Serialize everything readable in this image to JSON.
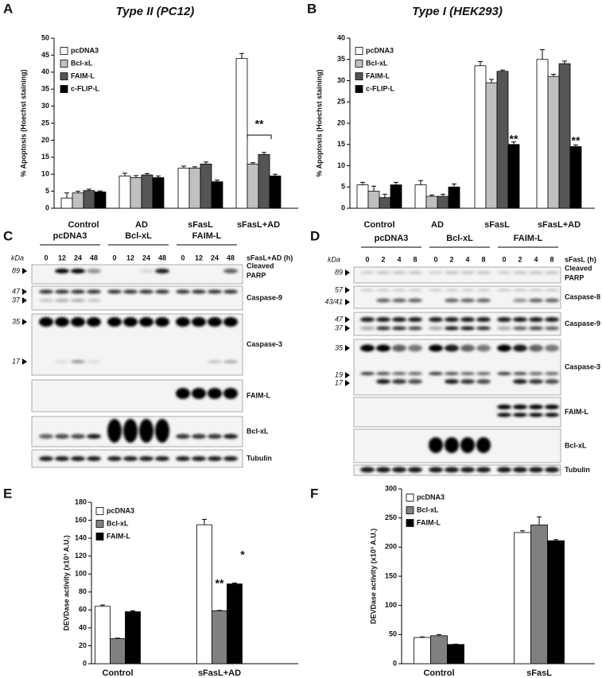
{
  "chart_data": [
    {
      "type": "bar",
      "panel": "A",
      "title": "Type II (PC12)",
      "ylabel": "% Apoptosis (Hoechst staining)",
      "categories": [
        "Control",
        "AD",
        "sFasL",
        "sFasL+AD"
      ],
      "series": [
        {
          "name": "pcDNA3",
          "color": "#ffffff",
          "values": [
            3,
            9.5,
            11.8,
            44
          ],
          "errors": [
            1.5,
            0.8,
            0.6,
            1.5
          ]
        },
        {
          "name": "Bcl-xL",
          "color": "#c0c0c0",
          "values": [
            4.5,
            9,
            11.8,
            13
          ],
          "errors": [
            0.5,
            0.6,
            0.4,
            0.4
          ]
        },
        {
          "name": "FAIM-L",
          "color": "#555555",
          "values": [
            5.2,
            9.8,
            13,
            15.8
          ],
          "errors": [
            0.4,
            0.4,
            0.6,
            0.6
          ]
        },
        {
          "name": "c-FLIP-L",
          "color": "#000000",
          "values": [
            4.8,
            9,
            7.8,
            9.5
          ],
          "errors": [
            0.3,
            0.5,
            0.5,
            0.5
          ]
        }
      ],
      "ylim": [
        0,
        50
      ],
      "yticks": [
        0,
        5,
        10,
        15,
        20,
        25,
        30,
        35,
        40,
        45,
        50
      ],
      "annotations": [
        "**"
      ]
    },
    {
      "type": "bar",
      "panel": "B",
      "title": "Type I (HEK293)",
      "ylabel": "% Apoptosis (Hoechst staining)",
      "categories": [
        "Control",
        "AD",
        "sFasL",
        "sFasL+AD"
      ],
      "series": [
        {
          "name": "pcDNA3",
          "color": "#ffffff",
          "values": [
            5.5,
            5.5,
            33.5,
            35
          ],
          "errors": [
            0.6,
            1,
            1,
            2.3
          ]
        },
        {
          "name": "Bcl-xL",
          "color": "#c0c0c0",
          "values": [
            4,
            2.8,
            29.5,
            31
          ],
          "errors": [
            1.2,
            0.3,
            0.8,
            0.5
          ]
        },
        {
          "name": "FAIM-L",
          "color": "#555555",
          "values": [
            2.5,
            2.8,
            32.2,
            34
          ],
          "errors": [
            0.8,
            0.5,
            0.3,
            0.6
          ]
        },
        {
          "name": "c-FLIP-L",
          "color": "#000000",
          "values": [
            5.5,
            5,
            15,
            14.5
          ],
          "errors": [
            0.6,
            0.7,
            0.6,
            0.4
          ]
        }
      ],
      "ylim": [
        0,
        40
      ],
      "yticks": [
        0,
        5,
        10,
        15,
        20,
        25,
        30,
        35,
        40
      ],
      "annotations": [
        "**",
        "**"
      ]
    },
    {
      "type": "bar",
      "panel": "E",
      "ylabel": "DEVDase activity (x10³ A.U.)",
      "categories": [
        "Control",
        "sFasL+AD"
      ],
      "series": [
        {
          "name": "pcDNA3",
          "color": "#ffffff",
          "values": [
            64,
            155
          ],
          "errors": [
            1.5,
            6
          ]
        },
        {
          "name": "Bcl-xL",
          "color": "#808080",
          "values": [
            28,
            59
          ],
          "errors": [
            0.5,
            0.5
          ]
        },
        {
          "name": "FAIM-L",
          "color": "#000000",
          "values": [
            58,
            89
          ],
          "errors": [
            1,
            1
          ]
        }
      ],
      "ylim": [
        0,
        180
      ],
      "yticks": [
        0,
        20,
        40,
        60,
        80,
        100,
        120,
        140,
        160,
        180
      ],
      "annotations": [
        "**",
        "*"
      ]
    },
    {
      "type": "bar",
      "panel": "F",
      "ylabel": "DEVDase activity (x10³ A.U.)",
      "categories": [
        "Control",
        "sFasL"
      ],
      "series": [
        {
          "name": "pcDNA3",
          "color": "#ffffff",
          "values": [
            45,
            225
          ],
          "errors": [
            1,
            3
          ]
        },
        {
          "name": "Bcl-xL",
          "color": "#808080",
          "values": [
            48,
            238
          ],
          "errors": [
            2,
            14
          ]
        },
        {
          "name": "FAIM-L",
          "color": "#000000",
          "values": [
            33,
            211
          ],
          "errors": [
            0.5,
            2
          ]
        }
      ],
      "ylim": [
        0,
        300
      ],
      "yticks": [
        0,
        50,
        100,
        150,
        200,
        250,
        300
      ],
      "annotations": []
    }
  ],
  "blots": [
    {
      "panel": "C",
      "kda_label": "kDa",
      "groups": [
        "pcDNA3",
        "Bcl-xL",
        "FAIM-L"
      ],
      "times": [
        0,
        12,
        24,
        48
      ],
      "time_label": "sFasL+AD (h)",
      "rows": [
        {
          "label_lines": [
            "Cleaved",
            "PARP"
          ],
          "markers": [
            89
          ]
        },
        {
          "label_lines": [
            "Caspase-9"
          ],
          "markers": [
            47,
            37
          ]
        },
        {
          "label_lines": [
            "Caspase-3"
          ],
          "markers": [
            35,
            17
          ]
        },
        {
          "label_lines": [
            "FAIM-L"
          ],
          "markers": []
        },
        {
          "label_lines": [
            "Bcl-xL"
          ],
          "markers": []
        },
        {
          "label_lines": [
            "Tubulin"
          ],
          "markers": []
        }
      ]
    },
    {
      "panel": "D",
      "kda_label": "kDa",
      "groups": [
        "pcDNA3",
        "Bcl-xL",
        "FAIM-L"
      ],
      "times": [
        0,
        2,
        4,
        8
      ],
      "time_label": "sFasL (h)",
      "rows": [
        {
          "label_lines": [
            "Cleaved",
            "PARP"
          ],
          "markers": [
            89
          ]
        },
        {
          "label_lines": [
            "Caspase-8"
          ],
          "markers": [
            57,
            "43/41"
          ]
        },
        {
          "label_lines": [
            "Caspase-9"
          ],
          "markers": [
            47,
            37
          ]
        },
        {
          "label_lines": [
            "Caspase-3"
          ],
          "markers": [
            35,
            19,
            17
          ]
        },
        {
          "label_lines": [
            "FAIM-L"
          ],
          "markers": []
        },
        {
          "label_lines": [
            "Bcl-xL"
          ],
          "markers": []
        },
        {
          "label_lines": [
            "Tubulin"
          ],
          "markers": []
        }
      ]
    }
  ]
}
